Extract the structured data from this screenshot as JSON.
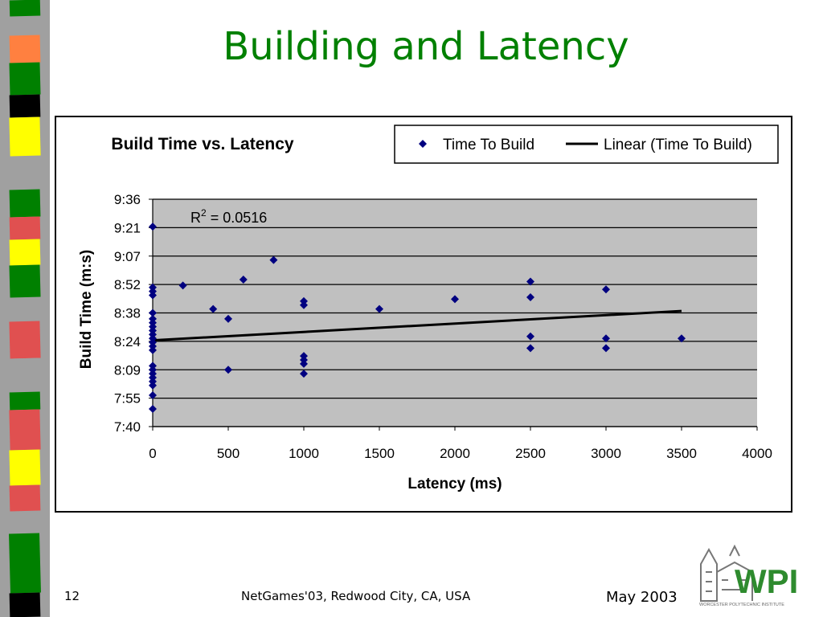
{
  "slide": {
    "title": "Building and Latency",
    "page_number": "12",
    "footer_center": "NetGames'03, Redwood City, CA, USA",
    "footer_right": "May 2003",
    "logo_text": "WPI",
    "logo_subtitle": "WORCESTER POLYTECHNIC INSTITUTE"
  },
  "colors": {
    "title": "#008000",
    "marker": "#000080",
    "plot_bg": "#c0c0c0",
    "logo_green": "#2e8b2e",
    "logo_red": "#c62828"
  },
  "chart_data": {
    "type": "scatter",
    "title": "Build Time vs. Latency",
    "xlabel": "Latency (ms)",
    "ylabel": "Build Time (m:s)",
    "xlim": [
      0,
      4000
    ],
    "ylim_seconds": [
      460,
      576
    ],
    "x_ticks": [
      "0",
      "500",
      "1000",
      "1500",
      "2000",
      "2500",
      "3000",
      "3500",
      "4000"
    ],
    "y_ticks": [
      "7:40",
      "7:55",
      "8:09",
      "8:24",
      "8:38",
      "8:52",
      "9:07",
      "9:21",
      "9:36"
    ],
    "grid": "horizontal",
    "legend_position": "top-right",
    "annotation": {
      "text": "R",
      "sup": "2",
      "rest": " = 0.0516"
    },
    "series": [
      {
        "name": "Time To Build",
        "marker": "diamond",
        "points": [
          {
            "x": 0,
            "y": "9:22"
          },
          {
            "x": 0,
            "y": "8:51"
          },
          {
            "x": 0,
            "y": "8:49"
          },
          {
            "x": 0,
            "y": "8:47"
          },
          {
            "x": 0,
            "y": "8:38"
          },
          {
            "x": 0,
            "y": "8:35"
          },
          {
            "x": 0,
            "y": "8:33"
          },
          {
            "x": 0,
            "y": "8:31"
          },
          {
            "x": 0,
            "y": "8:29"
          },
          {
            "x": 0,
            "y": "8:27"
          },
          {
            "x": 0,
            "y": "8:25"
          },
          {
            "x": 0,
            "y": "8:23"
          },
          {
            "x": 0,
            "y": "8:21"
          },
          {
            "x": 0,
            "y": "8:19"
          },
          {
            "x": 0,
            "y": "8:11"
          },
          {
            "x": 0,
            "y": "8:09"
          },
          {
            "x": 0,
            "y": "8:07"
          },
          {
            "x": 0,
            "y": "8:05"
          },
          {
            "x": 0,
            "y": "8:03"
          },
          {
            "x": 0,
            "y": "8:01"
          },
          {
            "x": 0,
            "y": "7:56"
          },
          {
            "x": 0,
            "y": "7:49"
          },
          {
            "x": 200,
            "y": "8:52"
          },
          {
            "x": 400,
            "y": "8:40"
          },
          {
            "x": 500,
            "y": "8:35"
          },
          {
            "x": 500,
            "y": "8:09"
          },
          {
            "x": 600,
            "y": "8:55"
          },
          {
            "x": 800,
            "y": "9:05"
          },
          {
            "x": 1000,
            "y": "8:44"
          },
          {
            "x": 1000,
            "y": "8:42"
          },
          {
            "x": 1000,
            "y": "8:16"
          },
          {
            "x": 1000,
            "y": "8:14"
          },
          {
            "x": 1000,
            "y": "8:12"
          },
          {
            "x": 1000,
            "y": "8:07"
          },
          {
            "x": 1500,
            "y": "8:40"
          },
          {
            "x": 2000,
            "y": "8:45"
          },
          {
            "x": 2500,
            "y": "8:54"
          },
          {
            "x": 2500,
            "y": "8:46"
          },
          {
            "x": 2500,
            "y": "8:26"
          },
          {
            "x": 2500,
            "y": "8:20"
          },
          {
            "x": 3000,
            "y": "8:50"
          },
          {
            "x": 3000,
            "y": "8:25"
          },
          {
            "x": 3000,
            "y": "8:20"
          },
          {
            "x": 3500,
            "y": "8:25"
          }
        ]
      },
      {
        "name": "Linear (Time To Build)",
        "type": "line",
        "points": [
          {
            "x": 0,
            "y": "8:24"
          },
          {
            "x": 3500,
            "y": "8:39"
          }
        ]
      }
    ]
  }
}
